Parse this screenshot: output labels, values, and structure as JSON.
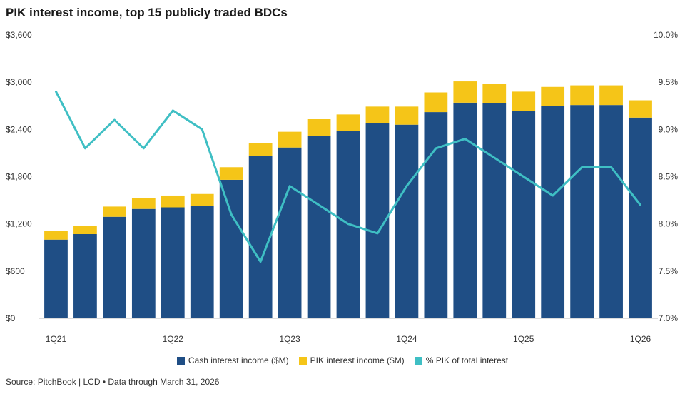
{
  "title": "PIK interest income, top 15 publicly traded BDCs",
  "source": "Source: PitchBook | LCD • Data through March 31, 2026",
  "colors": {
    "cash": "#1f4e85",
    "pik": "#f5c518",
    "pct": "#3fbfc4"
  },
  "chart_data": {
    "type": "bar",
    "stacked": true,
    "categories": [
      "1Q21",
      "2Q21",
      "3Q21",
      "4Q21",
      "1Q22",
      "2Q22",
      "3Q22",
      "4Q22",
      "1Q23",
      "2Q23",
      "3Q23",
      "4Q23",
      "1Q24",
      "2Q24",
      "3Q24",
      "4Q24",
      "1Q25",
      "2Q25",
      "3Q25",
      "4Q25",
      "1Q26"
    ],
    "x_tick_labels": [
      "1Q21",
      "",
      "",
      "",
      "1Q22",
      "",
      "",
      "",
      "1Q23",
      "",
      "",
      "",
      "1Q24",
      "",
      "",
      "",
      "1Q25",
      "",
      "",
      "",
      "1Q26"
    ],
    "series": [
      {
        "name": "Cash interest income ($M)",
        "type": "bar",
        "axis": "left",
        "values": [
          1000,
          1070,
          1290,
          1390,
          1410,
          1430,
          1760,
          2060,
          2170,
          2320,
          2380,
          2480,
          2460,
          2620,
          2740,
          2730,
          2630,
          2700,
          2710,
          2710,
          2550
        ]
      },
      {
        "name": "PIK interest income ($M)",
        "type": "bar",
        "axis": "left",
        "values": [
          110,
          100,
          130,
          140,
          150,
          150,
          160,
          170,
          200,
          210,
          210,
          210,
          230,
          250,
          270,
          250,
          250,
          240,
          250,
          250,
          220
        ]
      },
      {
        "name": "% PIK of total interest",
        "type": "line",
        "axis": "right",
        "values": [
          9.4,
          8.8,
          9.1,
          8.8,
          9.2,
          9.0,
          8.1,
          7.6,
          8.4,
          8.2,
          8.0,
          7.9,
          8.4,
          8.8,
          8.9,
          8.7,
          8.5,
          8.3,
          8.6,
          8.6,
          8.2
        ]
      }
    ],
    "y_left": {
      "ylim": [
        0,
        3600
      ],
      "ticks": [
        0,
        600,
        1200,
        1800,
        2400,
        3000,
        3600
      ],
      "tick_labels": [
        "$0",
        "$600",
        "$1,200",
        "$1,800",
        "$2,400",
        "$3,000",
        "$3,600"
      ]
    },
    "y_right": {
      "ylim": [
        7.0,
        10.0
      ],
      "ticks": [
        7.0,
        7.5,
        8.0,
        8.5,
        9.0,
        9.5,
        10.0
      ],
      "tick_labels": [
        "7.0%",
        "7.5%",
        "8.0%",
        "8.5%",
        "9.0%",
        "9.5%",
        "10.0%"
      ]
    },
    "grid": false,
    "legend": "bottom-center"
  }
}
